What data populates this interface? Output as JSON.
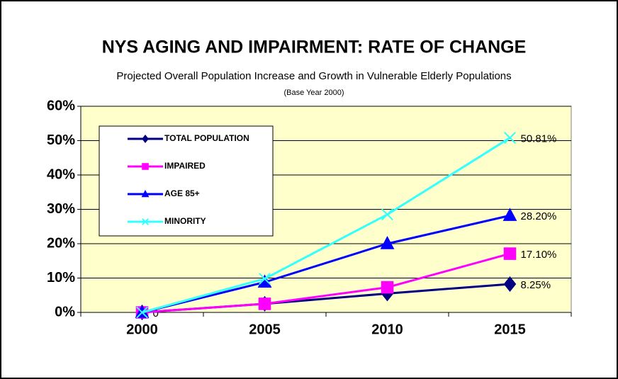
{
  "chart_data": {
    "type": "line",
    "title": "NYS AGING AND IMPAIRMENT: RATE OF CHANGE",
    "subtitle": "Projected Overall Population Increase and Growth in Vulnerable Elderly Populations",
    "note": "(Base Year 2000)",
    "categories": [
      "2000",
      "2005",
      "2010",
      "2015"
    ],
    "series": [
      {
        "name": "TOTAL POPULATION",
        "color": "#000080",
        "marker": "diamond",
        "values": [
          0,
          2.5,
          5.5,
          8.25
        ],
        "value_labels": [
          "0",
          null,
          null,
          "8.25%"
        ]
      },
      {
        "name": "IMPAIRED",
        "color": "#ff00ff",
        "marker": "square",
        "values": [
          0,
          2.5,
          7.3,
          17.1
        ],
        "value_labels": [
          null,
          null,
          null,
          "17.10%"
        ]
      },
      {
        "name": "AGE 85+",
        "color": "#0000ff",
        "marker": "triangle",
        "values": [
          0,
          8.8,
          20,
          28.2
        ],
        "value_labels": [
          null,
          null,
          null,
          "28.20%"
        ]
      },
      {
        "name": "MINORITY",
        "color": "#33ffff",
        "marker": "x",
        "values": [
          0,
          9.8,
          28.5,
          50.81
        ],
        "value_labels": [
          null,
          null,
          null,
          "50.81%"
        ]
      }
    ],
    "ylim": [
      0,
      60
    ],
    "yticks": [
      {
        "value": 0,
        "label": "0%"
      },
      {
        "value": 10,
        "label": "10%"
      },
      {
        "value": 20,
        "label": "20%"
      },
      {
        "value": 30,
        "label": "30%"
      },
      {
        "value": 40,
        "label": "40%"
      },
      {
        "value": 50,
        "label": "50%"
      },
      {
        "value": 60,
        "label": "60%"
      }
    ],
    "grid": true,
    "legend": "upper left"
  }
}
